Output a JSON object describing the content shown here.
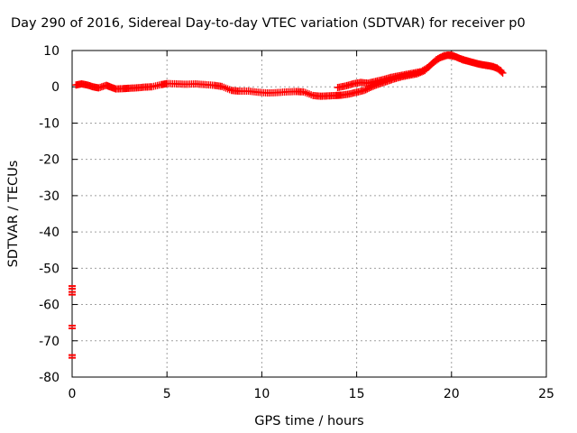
{
  "chart_data": {
    "type": "scatter",
    "title": "Day 290 of 2016, Sidereal Day-to-day VTEC variation (SDTVAR) for receiver p0",
    "xlabel": "GPS time / hours",
    "ylabel": "SDTVAR / TECUs",
    "xlim": [
      0,
      25
    ],
    "ylim": [
      -80,
      10
    ],
    "xticks": [
      0,
      5,
      10,
      15,
      20,
      25
    ],
    "yticks": [
      -80,
      -70,
      -60,
      -50,
      -40,
      -30,
      -20,
      -10,
      0,
      10
    ],
    "grid": true,
    "marker_color": "#ff0000",
    "series": [
      {
        "points": [
          [
            0.2,
            0.5
          ],
          [
            0.5,
            0.8
          ],
          [
            0.8,
            0.5
          ],
          [
            1.1,
            0.0
          ],
          [
            1.4,
            -0.3
          ],
          [
            1.8,
            0.4
          ],
          [
            2.0,
            0.0
          ],
          [
            2.3,
            -0.6
          ],
          [
            2.7,
            -0.5
          ],
          [
            3.0,
            -0.4
          ],
          [
            3.4,
            -0.3
          ],
          [
            3.8,
            -0.1
          ],
          [
            4.2,
            0.0
          ],
          [
            4.7,
            0.6
          ],
          [
            5.0,
            0.9
          ],
          [
            5.5,
            0.8
          ],
          [
            6.0,
            0.7
          ],
          [
            6.5,
            0.8
          ],
          [
            7.0,
            0.6
          ],
          [
            7.5,
            0.4
          ],
          [
            7.9,
            0.1
          ],
          [
            8.4,
            -1.0
          ],
          [
            8.8,
            -1.2
          ],
          [
            9.3,
            -1.2
          ],
          [
            9.8,
            -1.5
          ],
          [
            10.3,
            -1.7
          ],
          [
            10.8,
            -1.6
          ],
          [
            11.3,
            -1.4
          ],
          [
            11.8,
            -1.3
          ],
          [
            12.2,
            -1.4
          ],
          [
            12.7,
            -2.4
          ],
          [
            13.1,
            -2.6
          ],
          [
            13.5,
            -2.5
          ],
          [
            13.9,
            -2.4
          ],
          [
            14.2,
            -2.3
          ],
          [
            14.6,
            -2.0
          ],
          [
            15.0,
            -1.5
          ],
          [
            15.4,
            -1.0
          ],
          [
            15.8,
            0.0
          ],
          [
            16.2,
            0.8
          ],
          [
            16.6,
            1.5
          ],
          [
            17.0,
            2.2
          ],
          [
            17.4,
            2.8
          ],
          [
            17.8,
            3.2
          ],
          [
            18.2,
            3.6
          ],
          [
            18.6,
            4.5
          ],
          [
            19.0,
            6.5
          ],
          [
            19.4,
            8.0
          ],
          [
            19.8,
            8.7
          ],
          [
            20.2,
            8.3
          ],
          [
            20.6,
            7.4
          ],
          [
            21.0,
            6.9
          ],
          [
            21.4,
            6.3
          ],
          [
            21.8,
            5.9
          ],
          [
            22.2,
            5.6
          ],
          [
            22.6,
            4.5
          ],
          [
            14.0,
            -0.2
          ],
          [
            14.4,
            0.2
          ],
          [
            14.8,
            0.8
          ],
          [
            15.2,
            1.2
          ],
          [
            15.6,
            1.0
          ],
          [
            16.0,
            1.5
          ],
          [
            16.4,
            2.0
          ],
          [
            16.8,
            2.6
          ],
          [
            17.2,
            3.0
          ],
          [
            17.6,
            3.4
          ],
          [
            18.0,
            3.8
          ],
          [
            18.4,
            4.2
          ],
          [
            18.8,
            5.5
          ],
          [
            19.2,
            7.5
          ],
          [
            19.6,
            8.6
          ],
          [
            20.0,
            8.8
          ],
          [
            20.4,
            7.9
          ],
          [
            20.8,
            7.2
          ],
          [
            21.2,
            6.6
          ],
          [
            21.6,
            6.1
          ],
          [
            22.0,
            5.8
          ],
          [
            22.4,
            5.2
          ],
          [
            22.7,
            3.8
          ],
          [
            0.0,
            -55.3
          ],
          [
            0.0,
            -56.9
          ],
          [
            0.0,
            -66.2
          ],
          [
            0.0,
            -74.3
          ]
        ]
      }
    ]
  }
}
